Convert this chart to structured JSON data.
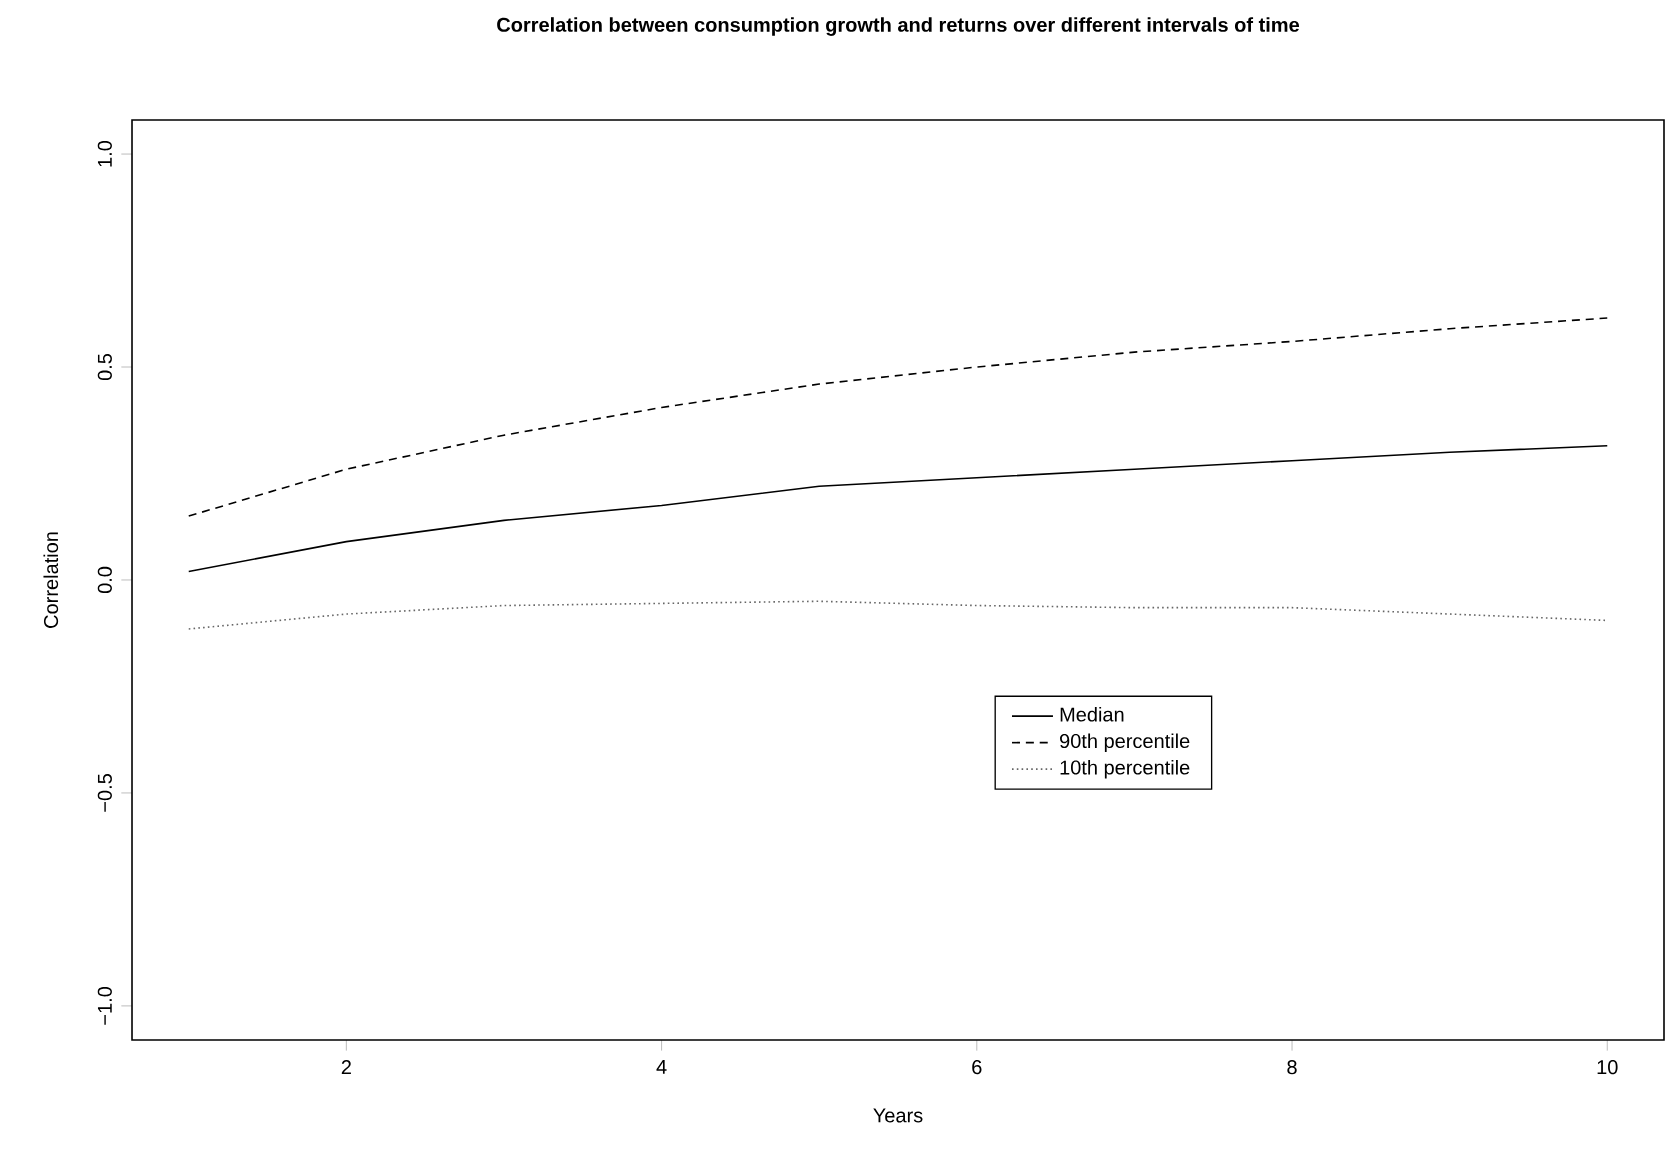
{
  "chart_data": {
    "type": "line",
    "title": "Correlation between consumption growth and returns over different intervals of time",
    "xlabel": "Years",
    "ylabel": "Correlation",
    "x": [
      1,
      2,
      3,
      4,
      5,
      6,
      7,
      8,
      9,
      10
    ],
    "series": [
      {
        "name": "Median",
        "color": "#000000",
        "line_style": "solid",
        "values": [
          0.02,
          0.09,
          0.14,
          0.175,
          0.22,
          0.24,
          0.26,
          0.28,
          0.3,
          0.315
        ]
      },
      {
        "name": "90th percentile",
        "color": "#000000",
        "line_style": "dashed",
        "values": [
          0.15,
          0.26,
          0.34,
          0.405,
          0.46,
          0.5,
          0.535,
          0.56,
          0.59,
          0.615
        ]
      },
      {
        "name": "10th percentile",
        "color": "#666666",
        "line_style": "dotted",
        "values": [
          -0.115,
          -0.08,
          -0.06,
          -0.055,
          -0.05,
          -0.06,
          -0.065,
          -0.065,
          -0.08,
          -0.095
        ]
      }
    ],
    "xlim": [
      0.64,
      10.36
    ],
    "ylim": [
      -1.08,
      1.08
    ],
    "xticks": [
      2,
      4,
      6,
      8,
      10
    ],
    "yticks": [
      {
        "value": -1.0,
        "label": "−1.0"
      },
      {
        "value": -0.5,
        "label": "−0.5"
      },
      {
        "value": 0.0,
        "label": "0.0"
      },
      {
        "value": 0.5,
        "label": "0.5"
      },
      {
        "value": 1.0,
        "label": "1.0"
      }
    ],
    "legend": "right",
    "grid": false,
    "marker": "none"
  }
}
